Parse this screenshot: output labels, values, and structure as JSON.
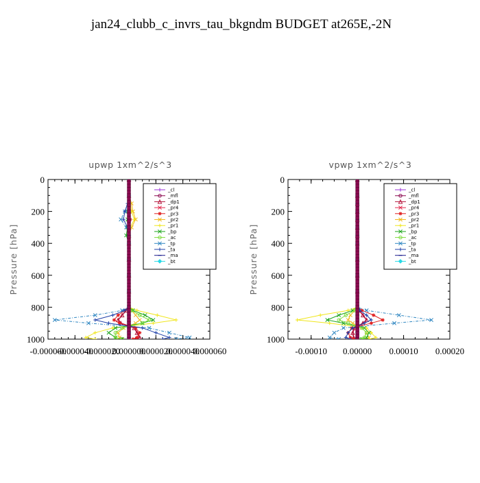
{
  "page_title": "jan24_clubb_c_invrs_tau_bkgndm  BUDGET at265E,-2N",
  "legend_labels": [
    "_cl",
    "_mfl",
    "_dp1",
    "_pr4",
    "_pr3",
    "_pr2",
    "_pr1",
    "_bp",
    "_ac",
    "_tp",
    "_ta",
    "_ma",
    "_bt"
  ],
  "series_colors": {
    "_cl": "#9b30d9",
    "_mfl": "#8b0a50",
    "_dp1": "#b5173d",
    "_pr4": "#e3264a",
    "_pr3": "#e01f1f",
    "_pr2": "#f2b81c",
    "_pr1": "#f0e61a",
    "_bp": "#1ea51e",
    "_ac": "#7ddc3a",
    "_tp": "#2e86c1",
    "_ta": "#1f3fa8",
    "_ma": "#1a1a8c",
    "_bt": "#28d9e6"
  },
  "chart_data": [
    {
      "type": "line",
      "title": "upwp   1xm^2/s^3",
      "ylabel": "Pressure [hPa]",
      "xlabel": "",
      "ylim": [
        1000,
        0
      ],
      "xlim": [
        -6e-05,
        6e-05
      ],
      "xticks": [
        -6e-05,
        -4e-05,
        -2e-05,
        0,
        2e-05,
        4e-05,
        6e-05
      ],
      "xtick_labels": [
        "-0.000060",
        "-0.000040",
        "-0.000020",
        "0.000000",
        "0.000020",
        "0.000040",
        "0.000060"
      ],
      "yticks": [
        0,
        200,
        400,
        600,
        800,
        1000
      ],
      "ytick_labels": [
        "0",
        "200",
        "400",
        "600",
        "800",
        "1000"
      ],
      "legend": "top-right",
      "pressure": [
        0,
        100,
        150,
        200,
        250,
        300,
        350,
        400,
        500,
        600,
        700,
        800,
        820,
        850,
        880,
        900,
        930,
        960,
        990,
        1000
      ],
      "series": [
        {
          "name": "_cl",
          "values": [
            0,
            0,
            0,
            0,
            0,
            0,
            0,
            0,
            0,
            0,
            0,
            0,
            0,
            0,
            0,
            0,
            0,
            0,
            0,
            0
          ]
        },
        {
          "name": "_mfl",
          "values": [
            0,
            0,
            0,
            0,
            0,
            0,
            0,
            0,
            0,
            0,
            0,
            0,
            0,
            0,
            0,
            0,
            0,
            0,
            0,
            0
          ]
        },
        {
          "name": "_dp1",
          "values": [
            0,
            0,
            0,
            0,
            0,
            0,
            0,
            0,
            0,
            0,
            0,
            0,
            -2e-06,
            -5e-06,
            -8e-06,
            -6e-06,
            4e-06,
            6e-06,
            8e-06,
            5e-06
          ]
        },
        {
          "name": "_pr4",
          "values": [
            0,
            0,
            0,
            0,
            0,
            0,
            0,
            0,
            0,
            0,
            0,
            0,
            0,
            0,
            0,
            0,
            0,
            0,
            0,
            0
          ]
        },
        {
          "name": "_pr3",
          "values": [
            0,
            0,
            0,
            5e-07,
            1e-06,
            0,
            0,
            0,
            0,
            0,
            0,
            0,
            -3e-06,
            -8e-06,
            -1.1e-05,
            -7e-06,
            5e-06,
            8e-06,
            6e-06,
            3e-06
          ]
        },
        {
          "name": "_pr2",
          "values": [
            0,
            0,
            2e-06,
            3e-06,
            5e-06,
            2e-06,
            0,
            0,
            0,
            0,
            0,
            0,
            2e-06,
            5e-06,
            8e-06,
            5e-06,
            -4e-06,
            -8e-06,
            -7e-06,
            -5e-06
          ]
        },
        {
          "name": "_pr1",
          "values": [
            0,
            0,
            1e-06,
            2e-06,
            4e-06,
            1e-06,
            0,
            0,
            0,
            0,
            0,
            0,
            6e-06,
            2.1e-05,
            3.5e-05,
            1.8e-05,
            -1.2e-05,
            -2.5e-05,
            -3.2e-05,
            -2.5e-05
          ]
        },
        {
          "name": "_bp",
          "values": [
            0,
            0,
            0,
            -1e-06,
            -1e-06,
            -1e-06,
            -2e-06,
            0,
            0,
            0,
            0,
            0,
            3e-06,
            1.2e-05,
            1.8e-05,
            1e-05,
            -1e-05,
            -1.5e-05,
            -1e-05,
            -5e-06
          ]
        },
        {
          "name": "_ac",
          "values": [
            0,
            0,
            0,
            0,
            0,
            0,
            0,
            0,
            0,
            0,
            0,
            0,
            2e-06,
            8e-06,
            1.5e-05,
            1e-05,
            -5e-06,
            -1e-05,
            -1e-05,
            -5e-06
          ]
        },
        {
          "name": "_tp",
          "values": [
            0,
            0,
            0,
            -3e-06,
            -6e-06,
            -2e-06,
            0,
            0,
            0,
            0,
            0,
            0,
            -5e-06,
            -2.5e-05,
            -5.5e-05,
            -3e-05,
            1.5e-05,
            3e-05,
            4.5e-05,
            3.5e-05
          ]
        },
        {
          "name": "_ta",
          "values": [
            0,
            0,
            -1e-06,
            -3e-06,
            -4e-06,
            -1e-06,
            0,
            0,
            0,
            0,
            0,
            0,
            -3e-06,
            -1.2e-05,
            -2.5e-05,
            -1.5e-05,
            1e-05,
            2e-05,
            3e-05,
            2.5e-05
          ]
        },
        {
          "name": "_ma",
          "values": [
            0,
            0,
            0,
            0,
            0,
            0,
            0,
            0,
            0,
            0,
            0,
            0,
            0,
            0,
            0,
            0,
            0,
            0,
            0,
            0
          ]
        },
        {
          "name": "_bt",
          "values": [
            0,
            0,
            0,
            0,
            0,
            0,
            0,
            0,
            0,
            0,
            0,
            0,
            0,
            0,
            0,
            0,
            0,
            0,
            0,
            0
          ]
        }
      ]
    },
    {
      "type": "line",
      "title": "vpwp   1xm^2/s^3",
      "ylabel": "Pressure [hPa]",
      "xlabel": "",
      "ylim": [
        1000,
        0
      ],
      "xlim": [
        -0.00015,
        0.0002
      ],
      "xticks": [
        -0.0001,
        0,
        0.0001,
        0.0002
      ],
      "xtick_labels": [
        "-0.00010",
        "0.00000",
        "0.00010",
        "0.00020"
      ],
      "yticks": [
        0,
        200,
        400,
        600,
        800,
        1000
      ],
      "ytick_labels": [
        "0",
        "200",
        "400",
        "600",
        "800",
        "1000"
      ],
      "legend": "top-right",
      "pressure": [
        0,
        100,
        150,
        200,
        250,
        300,
        350,
        400,
        500,
        600,
        700,
        800,
        820,
        850,
        880,
        900,
        930,
        960,
        990,
        1000
      ],
      "series": [
        {
          "name": "_cl",
          "values": [
            0,
            0,
            0,
            0,
            0,
            0,
            0,
            0,
            0,
            0,
            0,
            0,
            0,
            0,
            0,
            0,
            0,
            0,
            0,
            0
          ]
        },
        {
          "name": "_mfl",
          "values": [
            0,
            0,
            0,
            0,
            0,
            0,
            0,
            0,
            0,
            0,
            0,
            0,
            0,
            0,
            0,
            0,
            0,
            0,
            0,
            0
          ]
        },
        {
          "name": "_dp1",
          "values": [
            0,
            0,
            0,
            0,
            0,
            0,
            0,
            0,
            0,
            0,
            0,
            0,
            4e-06,
            1.2e-05,
            2e-05,
            1.2e-05,
            -6e-06,
            -1e-05,
            -8e-06,
            -4e-06
          ]
        },
        {
          "name": "_pr4",
          "values": [
            0,
            0,
            0,
            0,
            0,
            0,
            0,
            0,
            0,
            0,
            0,
            0,
            0,
            0,
            0,
            0,
            0,
            0,
            0,
            0
          ]
        },
        {
          "name": "_pr3",
          "values": [
            0,
            0,
            0,
            0,
            0,
            0,
            0,
            0,
            0,
            0,
            0,
            0,
            1e-05,
            3.5e-05,
            5.5e-05,
            3e-05,
            -1.2e-05,
            -2e-05,
            -1.5e-05,
            -8e-06
          ]
        },
        {
          "name": "_pr2",
          "values": [
            0,
            0,
            0,
            0,
            0,
            0,
            0,
            0,
            0,
            0,
            0,
            0,
            -5e-06,
            -1.5e-05,
            -2e-05,
            -1e-05,
            1e-05,
            2e-05,
            2.5e-05,
            1.5e-05
          ]
        },
        {
          "name": "_pr1",
          "values": [
            0,
            0,
            0,
            0,
            0,
            0,
            0,
            0,
            0,
            0,
            0,
            0,
            -2e-05,
            -8e-05,
            -0.00013,
            -6e-05,
            2e-05,
            3e-05,
            4e-05,
            2.5e-05
          ]
        },
        {
          "name": "_bp",
          "values": [
            0,
            0,
            0,
            0,
            0,
            0,
            0,
            0,
            0,
            0,
            0,
            0,
            -1e-05,
            -4e-05,
            -6.5e-05,
            -3e-05,
            1.5e-05,
            2.5e-05,
            2e-05,
            1e-05
          ]
        },
        {
          "name": "_ac",
          "values": [
            0,
            0,
            0,
            0,
            0,
            0,
            0,
            0,
            0,
            0,
            0,
            0,
            -5e-06,
            -2.5e-05,
            -4e-05,
            -2e-05,
            1e-05,
            2e-05,
            1.5e-05,
            8e-06
          ]
        },
        {
          "name": "_tp",
          "values": [
            0,
            0,
            0,
            0,
            0,
            0,
            0,
            0,
            0,
            0,
            0,
            0,
            2e-05,
            9e-05,
            0.00016,
            8e-05,
            -3e-05,
            -5e-05,
            -6e-05,
            -4e-05
          ]
        },
        {
          "name": "_ta",
          "values": [
            0,
            0,
            0,
            0,
            0,
            0,
            0,
            0,
            0,
            0,
            0,
            0,
            5e-06,
            2e-05,
            3e-05,
            1.5e-05,
            -1e-05,
            -2e-05,
            -2.5e-05,
            -1.5e-05
          ]
        },
        {
          "name": "_ma",
          "values": [
            0,
            0,
            0,
            0,
            0,
            0,
            0,
            0,
            0,
            0,
            0,
            0,
            0,
            0,
            0,
            0,
            0,
            0,
            0,
            0
          ]
        },
        {
          "name": "_bt",
          "values": [
            0,
            0,
            0,
            0,
            0,
            0,
            0,
            0,
            0,
            0,
            0,
            0,
            0,
            0,
            0,
            0,
            0,
            0,
            0,
            0
          ]
        }
      ]
    }
  ]
}
